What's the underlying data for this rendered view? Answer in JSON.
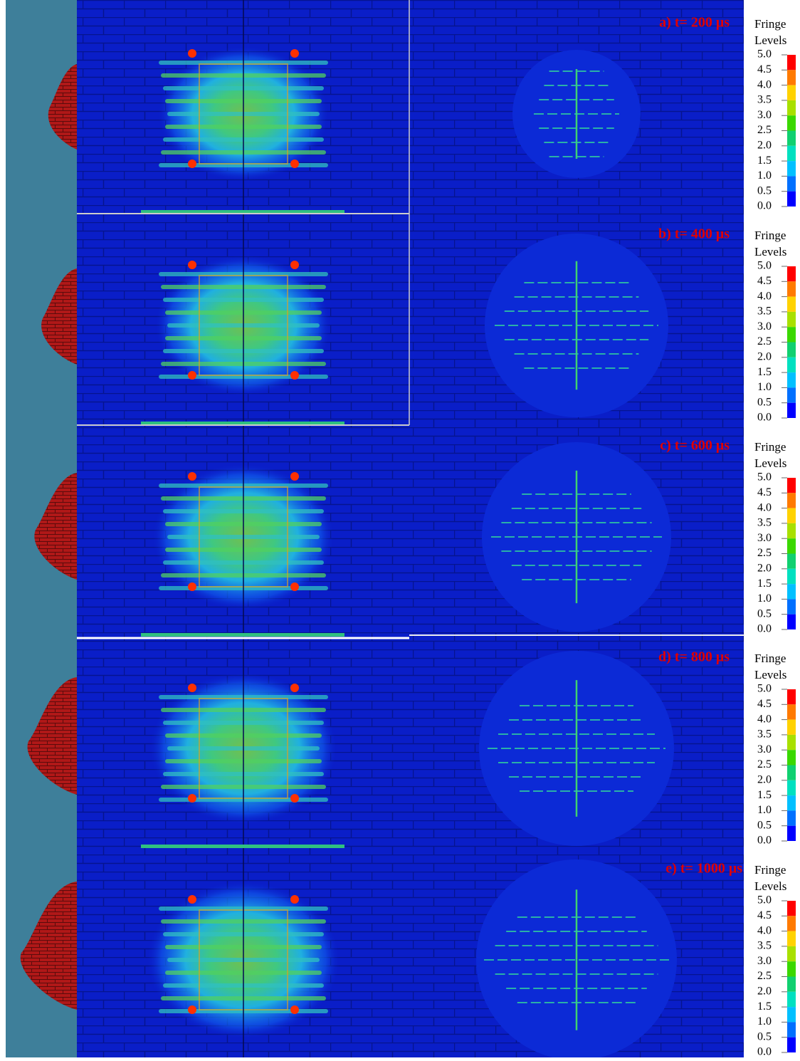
{
  "panels": [
    {
      "label": "a) t= 200 μs"
    },
    {
      "label": "b) t= 400 μs"
    },
    {
      "label": "c) t= 600 μs"
    },
    {
      "label": "d) t= 800 μs"
    },
    {
      "label": "e) t= 1000 μs"
    }
  ],
  "colorbar": {
    "title": [
      "Fringe",
      "Levels"
    ],
    "ticks": [
      {
        "value": 5,
        "label": "5.0"
      },
      {
        "value": 4.5,
        "label": "4.5"
      },
      {
        "value": 4,
        "label": "4.0"
      },
      {
        "value": 3.5,
        "label": "3.5"
      },
      {
        "value": 3,
        "label": "3.0"
      },
      {
        "value": 2.5,
        "label": "2.5"
      },
      {
        "value": 2,
        "label": "2.0"
      },
      {
        "value": 1.5,
        "label": "1.5"
      },
      {
        "value": 1,
        "label": "1.0"
      },
      {
        "value": 0.5,
        "label": "0.5"
      },
      {
        "value": 0,
        "label": "0.0"
      }
    ],
    "colors": [
      "#ff0000",
      "#ff7a00",
      "#ffd200",
      "#a8e000",
      "#3ad800",
      "#10d070",
      "#00e0c0",
      "#00c0ff",
      "#0070ff",
      "#0000ff"
    ]
  }
}
